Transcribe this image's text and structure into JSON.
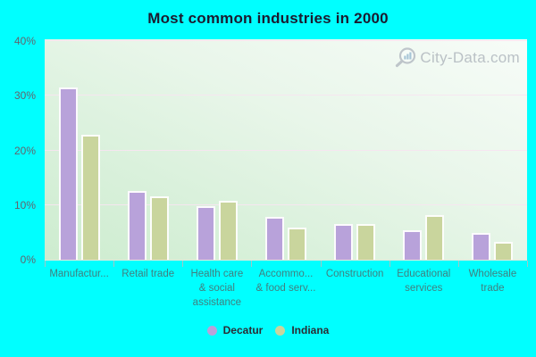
{
  "title": "Most common industries in 2000",
  "watermark": {
    "text": "City-Data.com"
  },
  "colors": {
    "background": "#00ffff",
    "title_text": "#1b1b2f",
    "axis_tick_label": "#63636d",
    "category_label": "#417f7f",
    "grid_line": "#f7e5f0",
    "plot_gradient_top": "#f7fcf8",
    "plot_gradient_bottom": "#cdeccf",
    "decatur_bar": "#b8a2da",
    "indiana_bar": "#c9d59d",
    "watermark_text": "#b4bbc1"
  },
  "legend": {
    "items": [
      {
        "label": "Decatur",
        "color": "#b8a2da"
      },
      {
        "label": "Indiana",
        "color": "#c9d59d"
      }
    ]
  },
  "chart_data": {
    "type": "bar",
    "title": "Most common industries in 2000",
    "categories": [
      "Manufactur...",
      "Retail trade",
      "Health care & social assistance",
      "Accommo... & food serv...",
      "Construction",
      "Educational services",
      "Wholesale trade"
    ],
    "category_lines": [
      [
        "Manufactur..."
      ],
      [
        "Retail trade"
      ],
      [
        "Health care",
        "& social",
        "assistance"
      ],
      [
        "Accommo...",
        "& food serv..."
      ],
      [
        "Construction"
      ],
      [
        "Educational",
        "services"
      ],
      [
        "Wholesale",
        "trade"
      ]
    ],
    "series": [
      {
        "name": "Decatur",
        "color": "#b8a2da",
        "values": [
          31.5,
          12.5,
          9.8,
          7.8,
          6.5,
          5.4,
          4.9
        ]
      },
      {
        "name": "Indiana",
        "color": "#c9d59d",
        "values": [
          22.8,
          11.6,
          10.8,
          5.8,
          6.6,
          8.2,
          3.2
        ]
      }
    ],
    "xlabel": "",
    "ylabel": "",
    "y_ticks": [
      "0%",
      "10%",
      "20%",
      "30%",
      "40%"
    ],
    "y_tick_values": [
      0,
      10,
      20,
      30,
      40
    ],
    "ylim": [
      0,
      40
    ],
    "grid": true,
    "legend_position": "bottom"
  }
}
